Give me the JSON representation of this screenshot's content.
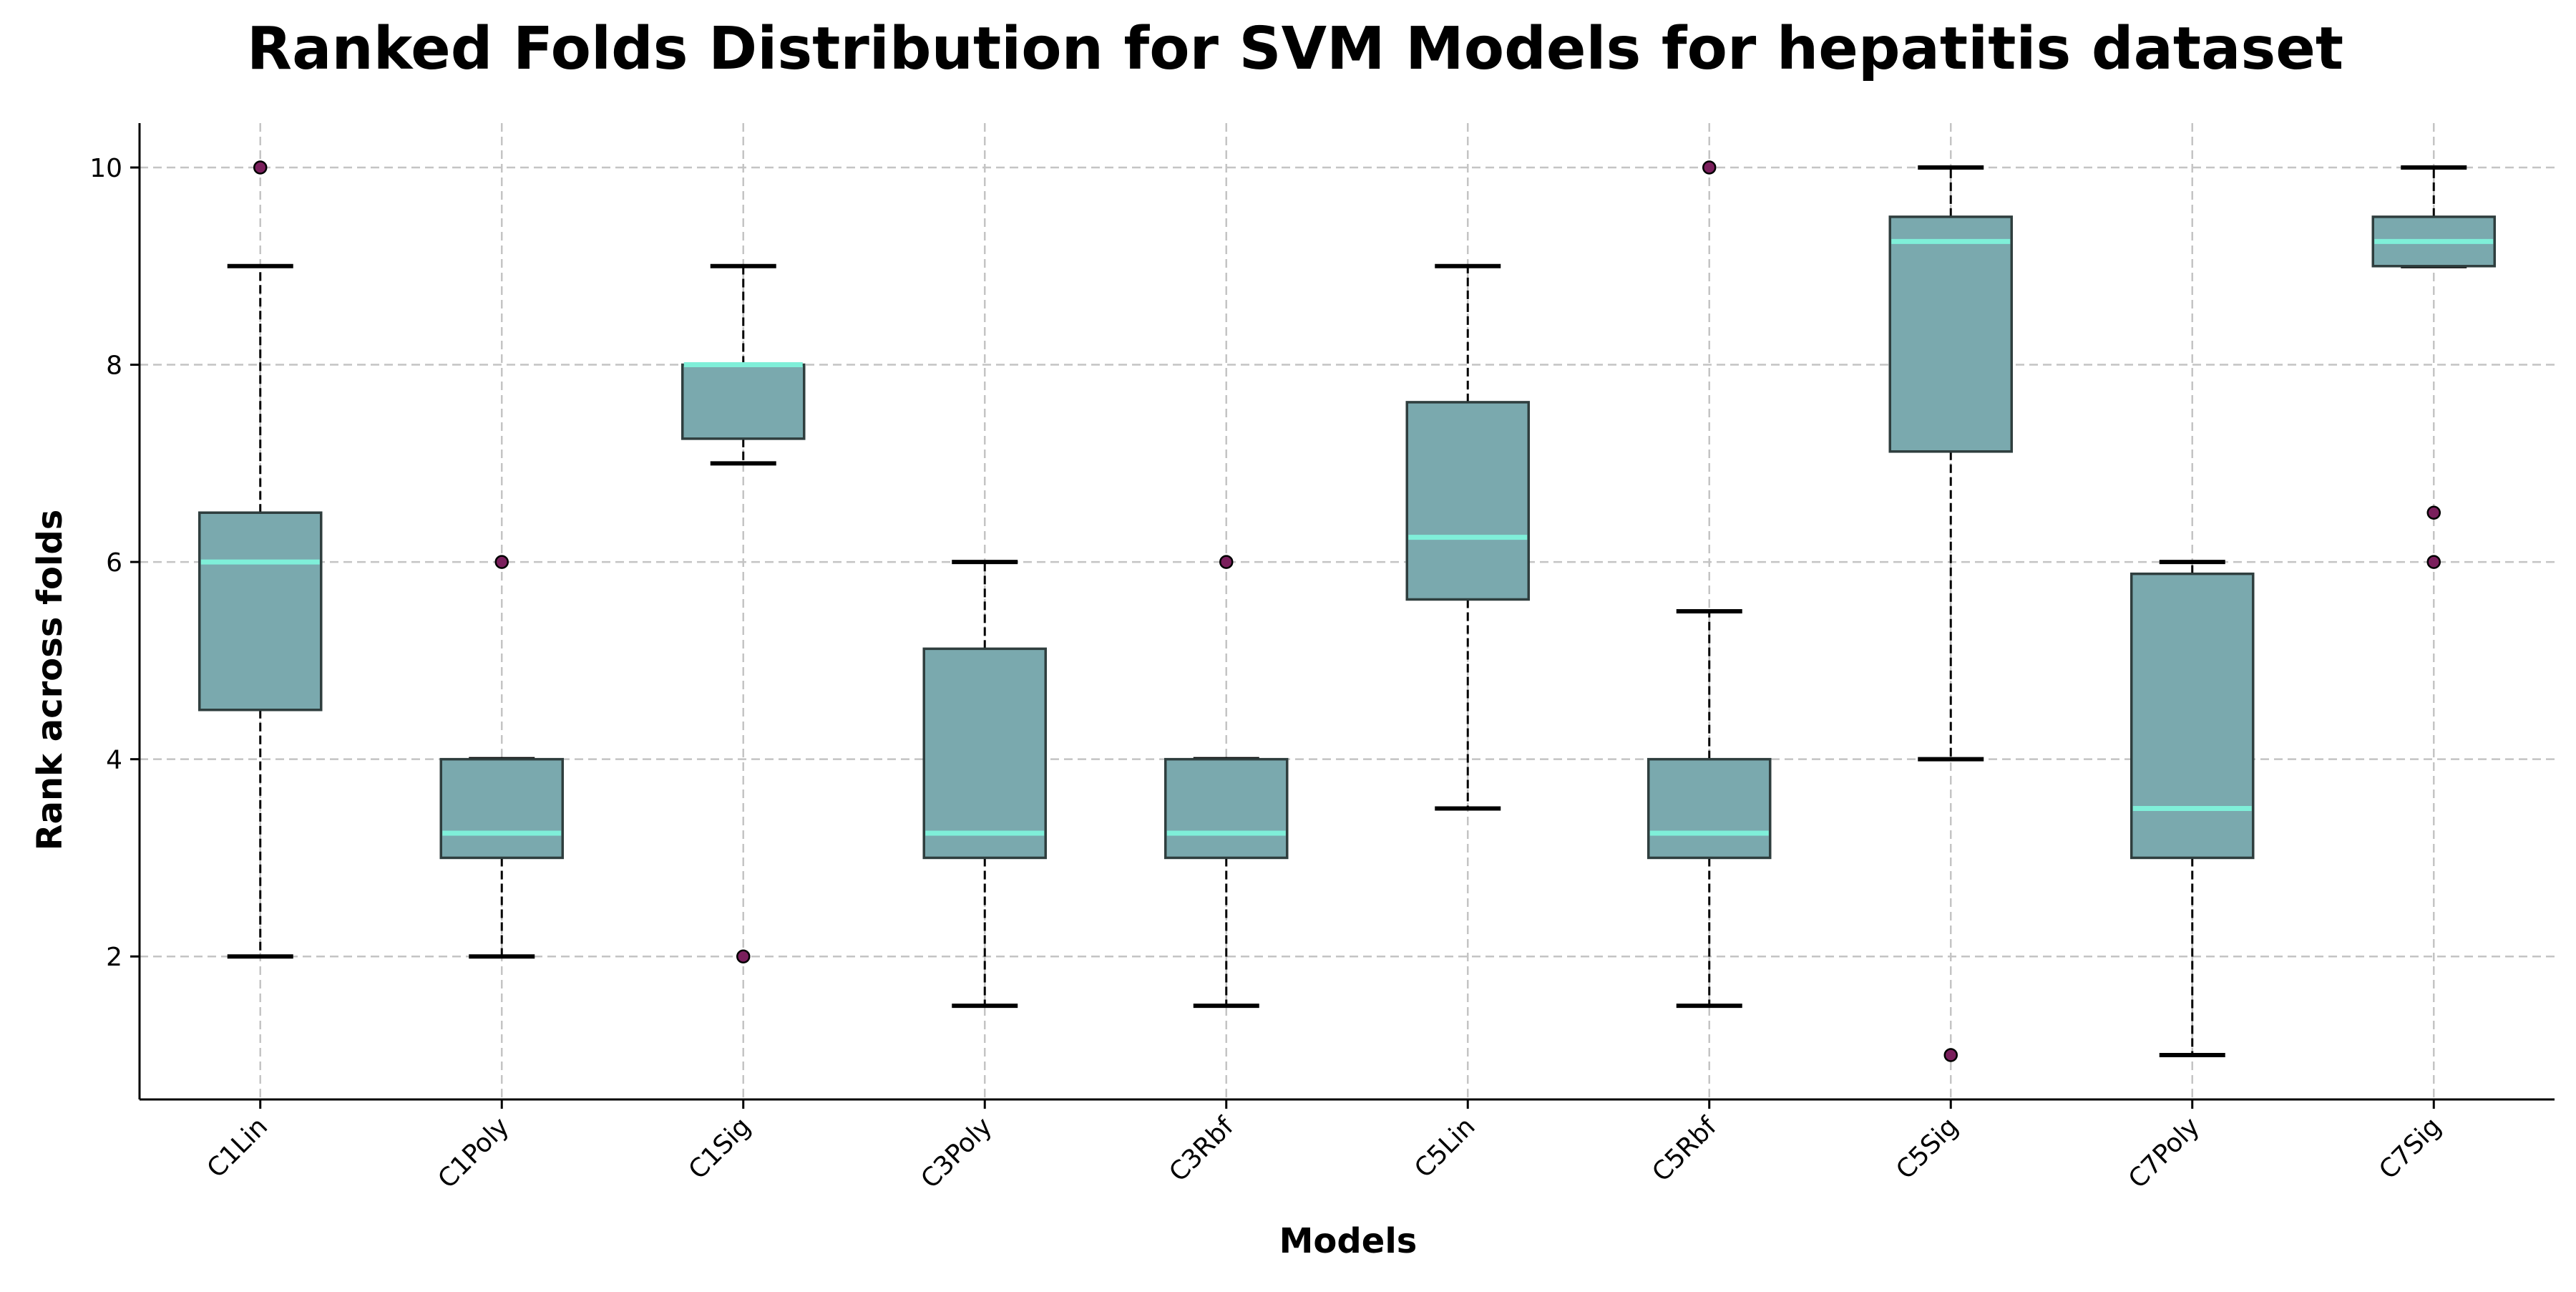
{
  "chart_data": {
    "type": "box",
    "title": "Ranked Folds Distribution for SVM Models for hepatitis dataset",
    "xlabel": "Models",
    "ylabel": "Rank across folds",
    "ylim": [
      0.55,
      10.45
    ],
    "yticks": [
      2,
      4,
      6,
      8,
      10
    ],
    "grid": true,
    "colors": {
      "box_fill": "#7aa9ae",
      "box_edge": "#2f3e3e",
      "median": "#7fefd9",
      "outlier_fill": "#7a1f5c",
      "grid": "#c4c4c4"
    },
    "categories": [
      "C1Lin",
      "C1Poly",
      "C1Sig",
      "C3Poly",
      "C3Rbf",
      "C5Lin",
      "C5Rbf",
      "C5Sig",
      "C7Poly",
      "C7Sig"
    ],
    "boxes": [
      {
        "name": "C1Lin",
        "whisker_low": 2,
        "q1": 4.5,
        "median": 6,
        "q3": 6.5,
        "whisker_high": 9,
        "outliers": [
          10
        ]
      },
      {
        "name": "C1Poly",
        "whisker_low": 2,
        "q1": 3,
        "median": 3.25,
        "q3": 4,
        "whisker_high": 4,
        "outliers": [
          6
        ]
      },
      {
        "name": "C1Sig",
        "whisker_low": 7,
        "q1": 7.25,
        "median": 8,
        "q3": 8,
        "whisker_high": 9,
        "outliers": [
          2
        ]
      },
      {
        "name": "C3Poly",
        "whisker_low": 1.5,
        "q1": 3,
        "median": 3.25,
        "q3": 5.12,
        "whisker_high": 6,
        "outliers": []
      },
      {
        "name": "C3Rbf",
        "whisker_low": 1.5,
        "q1": 3,
        "median": 3.25,
        "q3": 4,
        "whisker_high": 4,
        "outliers": [
          6
        ]
      },
      {
        "name": "C5Lin",
        "whisker_low": 3.5,
        "q1": 5.62,
        "median": 6.25,
        "q3": 7.62,
        "whisker_high": 9,
        "outliers": []
      },
      {
        "name": "C5Rbf",
        "whisker_low": 1.5,
        "q1": 3,
        "median": 3.25,
        "q3": 4,
        "whisker_high": 5.5,
        "outliers": [
          10
        ]
      },
      {
        "name": "C5Sig",
        "whisker_low": 4,
        "q1": 7.12,
        "median": 9.25,
        "q3": 9.5,
        "whisker_high": 10,
        "outliers": [
          1
        ]
      },
      {
        "name": "C7Poly",
        "whisker_low": 1,
        "q1": 3,
        "median": 3.5,
        "q3": 5.88,
        "whisker_high": 6,
        "outliers": []
      },
      {
        "name": "C7Sig",
        "whisker_low": 9,
        "q1": 9,
        "median": 9.25,
        "q3": 9.5,
        "whisker_high": 10,
        "outliers": [
          6.5,
          6
        ]
      }
    ]
  }
}
